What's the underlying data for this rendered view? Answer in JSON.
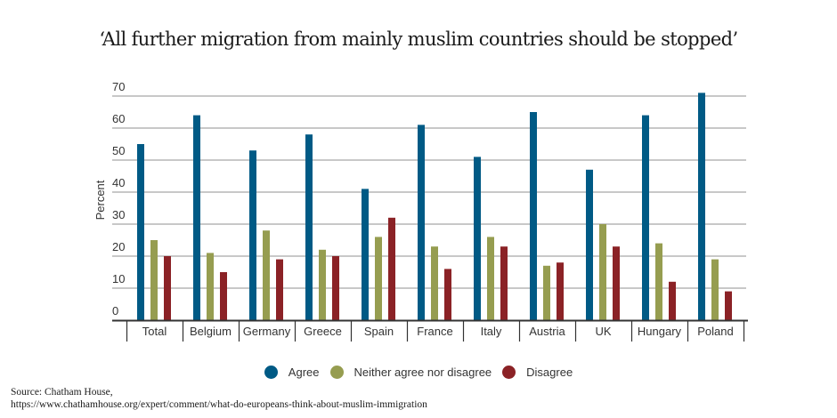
{
  "title": "‘All further migration from mainly muslim countries should be stopped’",
  "source": {
    "line1": "Source: Chatham House,",
    "line2": "https://www.chathamhouse.org/expert/comment/what-do-europeans-think-about-muslim-immigration"
  },
  "chart_data": {
    "type": "bar",
    "title": "‘All further migration from mainly muslim countries should be stopped’",
    "xlabel": "",
    "ylabel": "Percent",
    "ylim": [
      0,
      70
    ],
    "yticks": [
      0,
      10,
      20,
      30,
      40,
      50,
      60,
      70
    ],
    "grid": true,
    "legend_position": "bottom",
    "categories": [
      "Total",
      "Belgium",
      "Germany",
      "Greece",
      "Spain",
      "France",
      "Italy",
      "Austria",
      "UK",
      "Hungary",
      "Poland"
    ],
    "series": [
      {
        "name": "Agree",
        "color": "#005a85",
        "values": [
          55,
          64,
          53,
          58,
          41,
          61,
          51,
          65,
          47,
          64,
          71
        ]
      },
      {
        "name": "Neither agree nor disagree",
        "color": "#969d50",
        "values": [
          25,
          21,
          28,
          22,
          26,
          23,
          26,
          17,
          30,
          24,
          19
        ]
      },
      {
        "name": "Disagree",
        "color": "#8b2226",
        "values": [
          20,
          15,
          19,
          20,
          32,
          16,
          23,
          18,
          23,
          12,
          9
        ]
      }
    ]
  }
}
